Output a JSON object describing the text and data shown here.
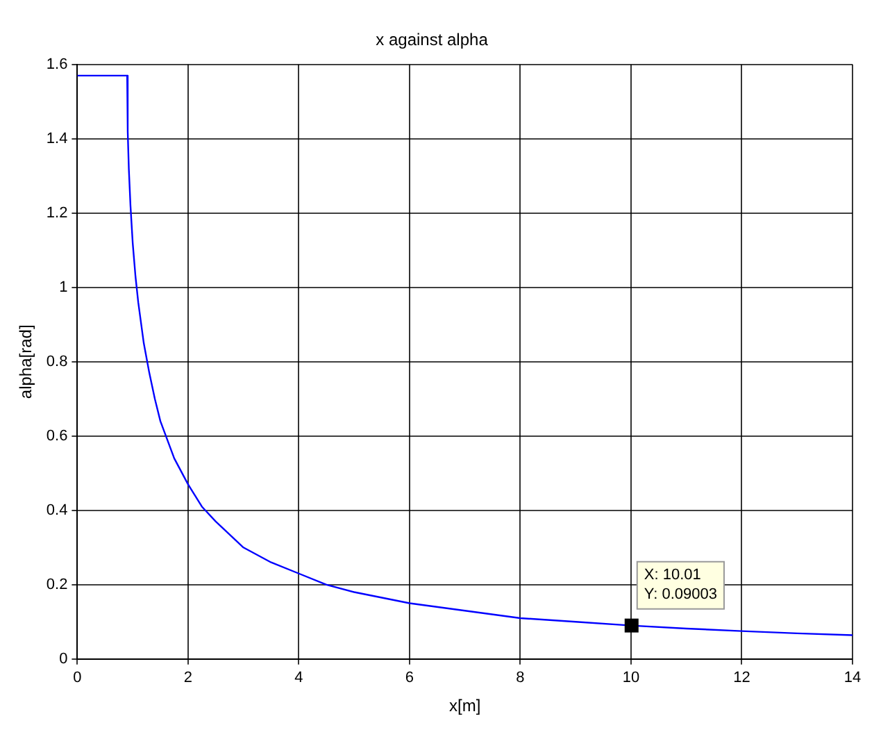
{
  "chart_data": {
    "type": "line",
    "title": "x against alpha",
    "xlabel": "x[m]",
    "ylabel": "alpha[rad]",
    "xlim": [
      0,
      14
    ],
    "xticks": [
      0,
      2,
      4,
      6,
      8,
      10,
      12,
      14
    ],
    "ylim": [
      0,
      1.6
    ],
    "yticks": [
      0,
      0.2,
      0.4,
      0.6,
      0.8,
      1,
      1.2,
      1.4,
      1.6
    ],
    "grid": true,
    "legend": false,
    "marker": "none",
    "line_style": "solid",
    "series": [
      {
        "color": "#0000ff",
        "x": [
          0,
          0.9,
          0.91,
          0.93,
          0.96,
          1.0,
          1.05,
          1.1,
          1.2,
          1.3,
          1.4,
          1.5,
          1.75,
          2,
          2.25,
          2.5,
          3,
          3.5,
          4,
          4.5,
          5,
          6,
          7,
          8,
          9,
          10,
          11,
          12,
          13,
          14
        ],
        "values": [
          1.57,
          1.57,
          1.42,
          1.32,
          1.22,
          1.12,
          1.03,
          0.96,
          0.85,
          0.77,
          0.7,
          0.64,
          0.54,
          0.47,
          0.41,
          0.37,
          0.3,
          0.26,
          0.23,
          0.2,
          0.18,
          0.15,
          0.13,
          0.11,
          0.1,
          0.09,
          0.082,
          0.075,
          0.069,
          0.064
        ]
      }
    ],
    "annotations": [
      {
        "text": "X: 10.01\nY: 0.09003",
        "x": 10.01,
        "y": 0.09003
      }
    ]
  }
}
